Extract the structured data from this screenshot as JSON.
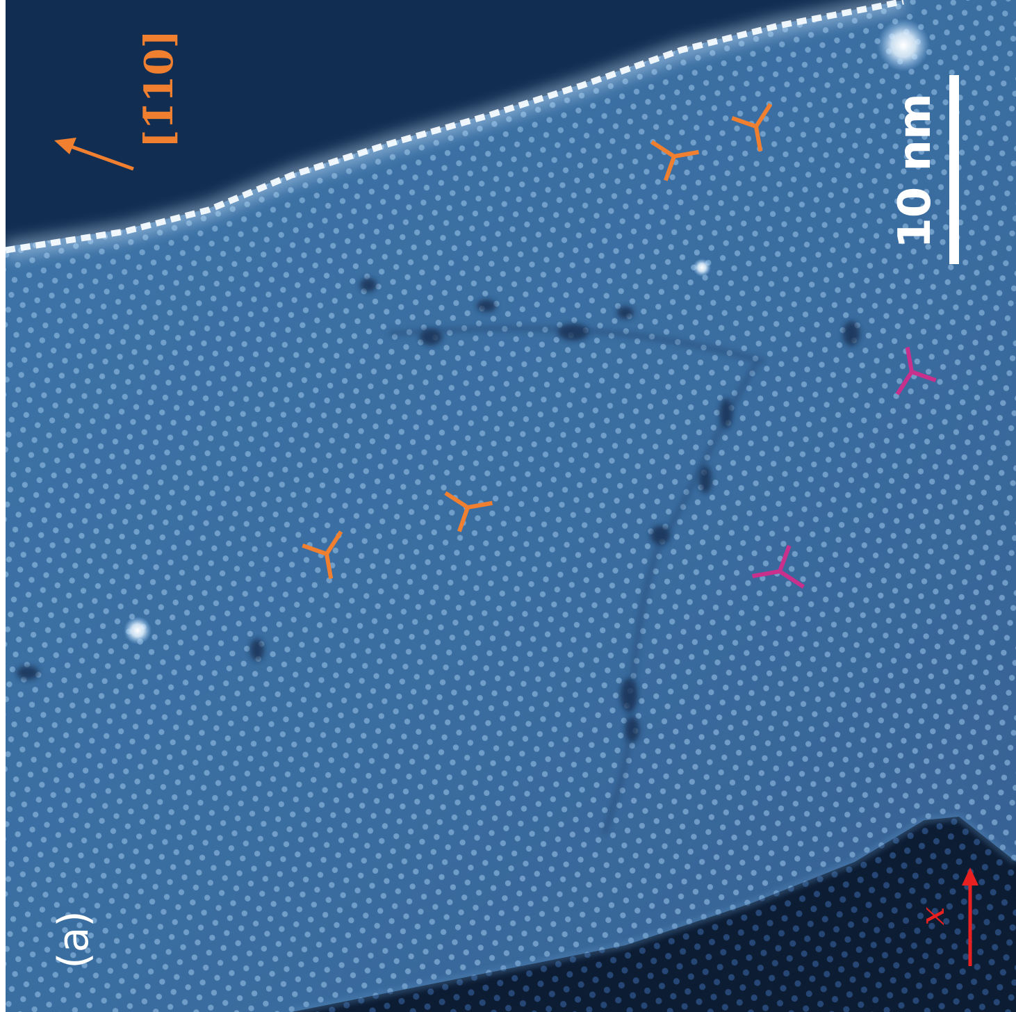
{
  "figure": {
    "panel_label": "(a)",
    "direction_label": "[1̄10]",
    "scale_bar_label": "10 nm",
    "axis_label": "x"
  },
  "colors": {
    "background_dark": "#0f2a4a",
    "surface": "#3a6fa3",
    "surface_light": "#6fa3cf",
    "step_edge": "#f2f8ff",
    "orange_marker": "#f08030",
    "magenta_marker": "#c8308c",
    "axis_red": "#e82020",
    "scale_white": "#ffffff"
  }
}
